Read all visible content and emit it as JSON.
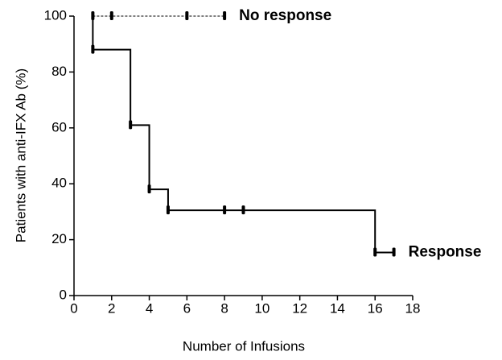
{
  "chart_data": {
    "type": "step",
    "xlabel": "Number of Infusions",
    "ylabel": "Patients with anti-IFX Ab  (%)",
    "xlim": [
      0,
      18
    ],
    "xticks": [
      0,
      2,
      4,
      6,
      8,
      10,
      12,
      14,
      16,
      18
    ],
    "ylim": [
      0,
      100
    ],
    "yticks": [
      0,
      20,
      40,
      60,
      80,
      100
    ],
    "series": [
      {
        "name": "No response",
        "color": "#000000",
        "linestyle": "dashed",
        "x": [
          1,
          8
        ],
        "values": [
          100,
          100
        ],
        "censor_x": [
          1,
          2,
          6,
          8
        ],
        "censor_y": [
          100,
          100,
          100,
          100
        ]
      },
      {
        "name": "Response",
        "color": "#000000",
        "linestyle": "solid",
        "x": [
          1,
          1,
          3,
          3,
          4,
          4,
          5,
          5,
          16,
          16,
          17
        ],
        "values": [
          100,
          88,
          88,
          61,
          61,
          38,
          38,
          30.5,
          30.5,
          15.4,
          15.4
        ],
        "censor_x": [
          1,
          3,
          4,
          5,
          8,
          9,
          16,
          17
        ],
        "censor_y": [
          88,
          61,
          38,
          30.5,
          30.5,
          30.5,
          15.4,
          15.4
        ]
      }
    ]
  }
}
